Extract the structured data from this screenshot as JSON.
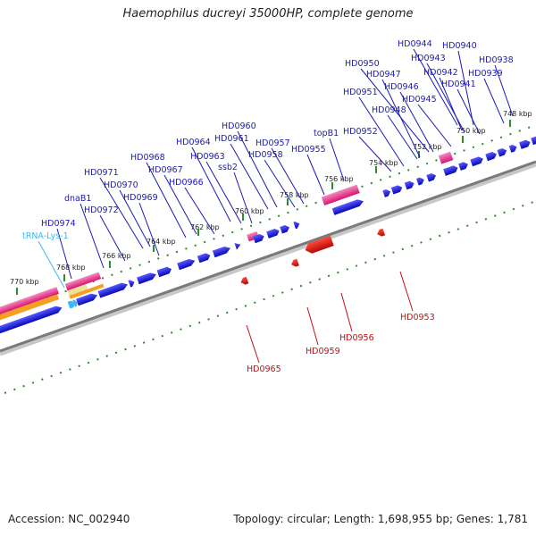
{
  "title": "Haemophilus ducreyi 35000HP, complete genome",
  "footer": {
    "accession": "Accession: NC_002940",
    "summary": "Topology: circular; Length: 1,698,955 bp; Genes: 1,781"
  },
  "ticks": [
    "748 kbp",
    "750 kbp",
    "752 kbp",
    "754 kbp",
    "756 kbp",
    "758 kbp",
    "760 kbp",
    "762 kbp",
    "764 kbp",
    "766 kbp",
    "768 kbp",
    "770 kbp"
  ],
  "forward_labels": [
    "HD0944",
    "HD0940",
    "HD0943",
    "HD0938",
    "HD0950",
    "HD0942",
    "HD0947",
    "HD0939",
    "HD0941",
    "HD0946",
    "HD0951",
    "HD0945",
    "HD0948",
    "HD0952",
    "topB1",
    "HD0960",
    "HD0961",
    "HD0964",
    "HD0957",
    "HD0955",
    "HD0963",
    "HD0958",
    "ssb2",
    "HD0968",
    "HD0967",
    "HD0971",
    "HD0970",
    "HD0966",
    "HD0969",
    "dnaB1",
    "HD0972",
    "HD0974"
  ],
  "trna_labels": [
    "tRNA-Lys-1"
  ],
  "reverse_labels": [
    "HD0953",
    "HD0956",
    "HD0959",
    "HD0965"
  ],
  "colors": {
    "cds": "#1010e0",
    "trna": "#3fb8f0",
    "reverse_cds": "#e01010",
    "misc": "#e83c8c",
    "orange": "#f5a020",
    "pale": "#efe09a",
    "backbone": "#7a7a7a",
    "ticks": "#2e8b2e",
    "label_fwd": "#1a1ab4",
    "label_rev": "#c01010"
  }
}
